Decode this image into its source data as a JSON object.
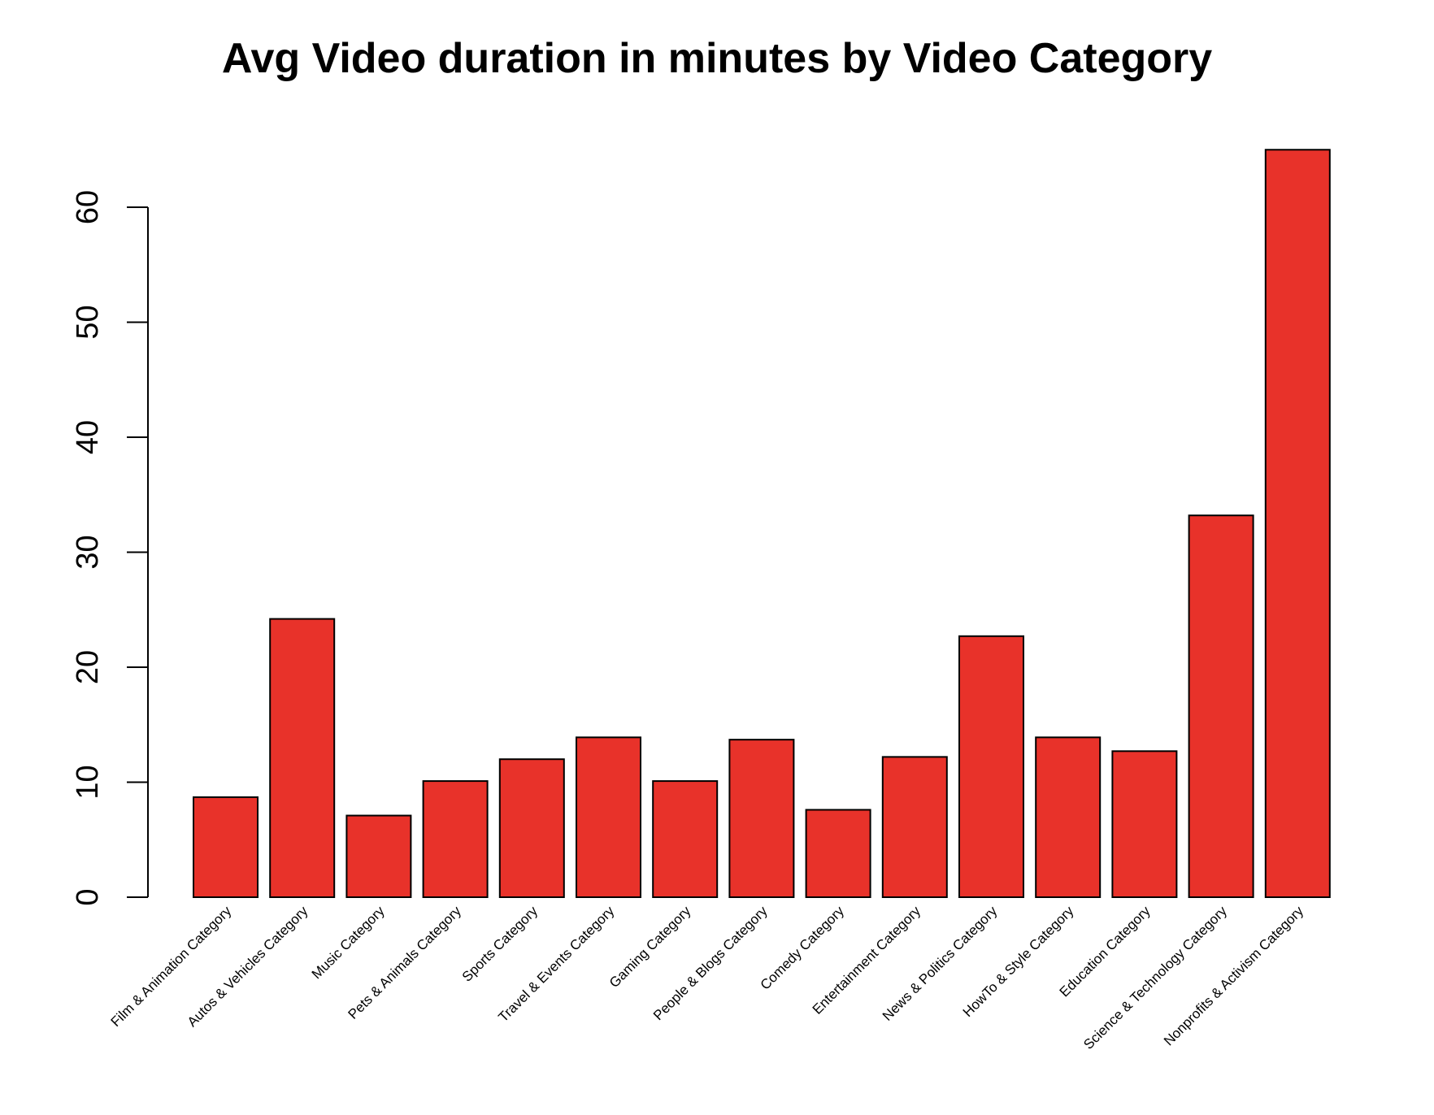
{
  "chart_data": {
    "type": "bar",
    "title": "Avg Video duration in minutes by Video Category",
    "xlabel": "",
    "ylabel": "",
    "ylim": [
      0,
      65
    ],
    "yticks": [
      0,
      10,
      20,
      30,
      40,
      50,
      60
    ],
    "grid": false,
    "bar_color": "#e8322a",
    "categories": [
      "Film & Animation Category",
      "Autos & Vehicles Category",
      "Music Category",
      "Pets & Animals Category",
      "Sports Category",
      "Travel & Events Category",
      "Gaming Category",
      "People & Blogs Category",
      "Comedy Category",
      "Entertainment Category",
      "News & Politics Category",
      "HowTo & Style Category",
      "Education Category",
      "Science & Technology Category",
      "Nonprofits & Activism Category"
    ],
    "values": [
      8.7,
      24.2,
      7.1,
      10.1,
      12.0,
      13.9,
      10.1,
      13.7,
      7.6,
      12.2,
      22.7,
      13.9,
      12.7,
      33.2,
      65.0
    ]
  }
}
